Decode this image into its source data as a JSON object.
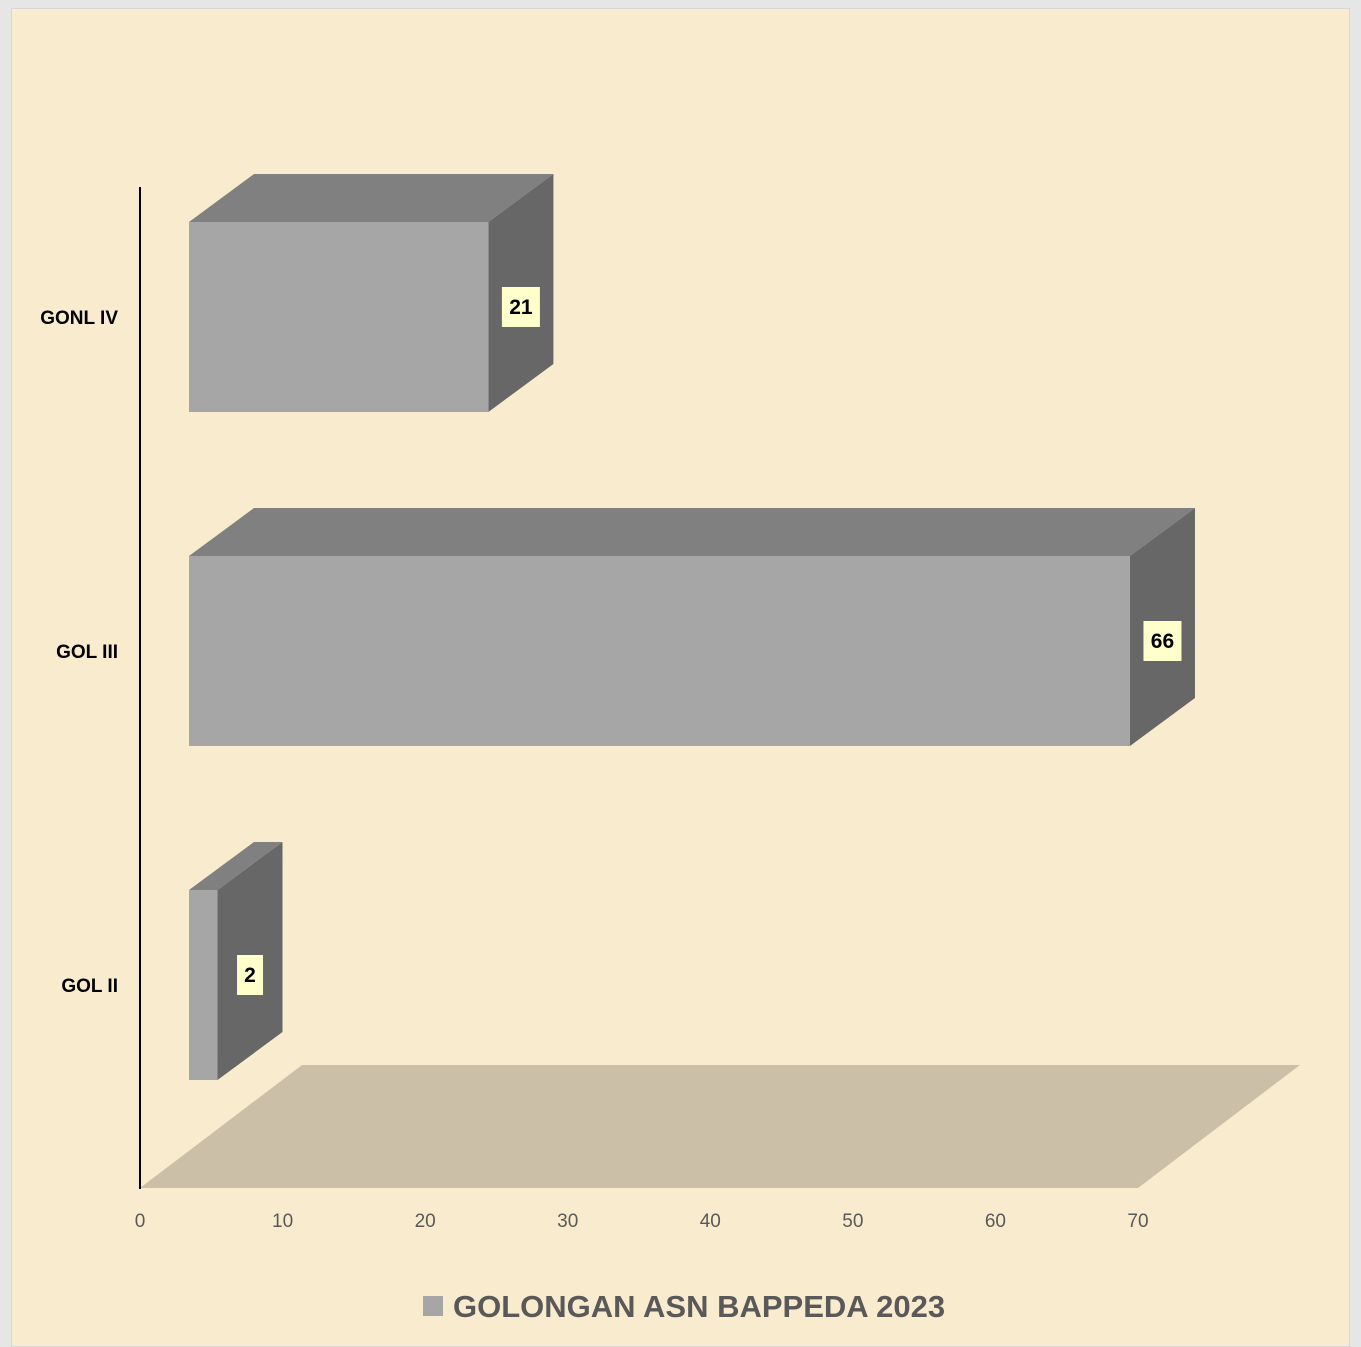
{
  "chart_data": {
    "type": "bar",
    "orientation": "horizontal",
    "three_d": true,
    "categories": [
      "GOL II",
      "GOL III",
      "GONL IV"
    ],
    "series": [
      {
        "name": "GOLONGAN ASN BAPPEDA 2023",
        "values": [
          2,
          66,
          21
        ],
        "color": "#a6a6a6"
      }
    ],
    "xlim": [
      0,
      70
    ],
    "x_ticks": [
      "0",
      "10",
      "20",
      "30",
      "40",
      "50",
      "60",
      "70"
    ],
    "data_labels": [
      "2",
      "66",
      "21"
    ],
    "legend_position": "bottom",
    "grid": false,
    "colors": {
      "background": "#f9ecce",
      "bar_front": "#a6a6a6",
      "bar_top": "#808080",
      "bar_side": "#676767",
      "floor": "#cbbfa7",
      "data_label_bg": "#ffffcc",
      "tick_text": "#595959"
    }
  }
}
